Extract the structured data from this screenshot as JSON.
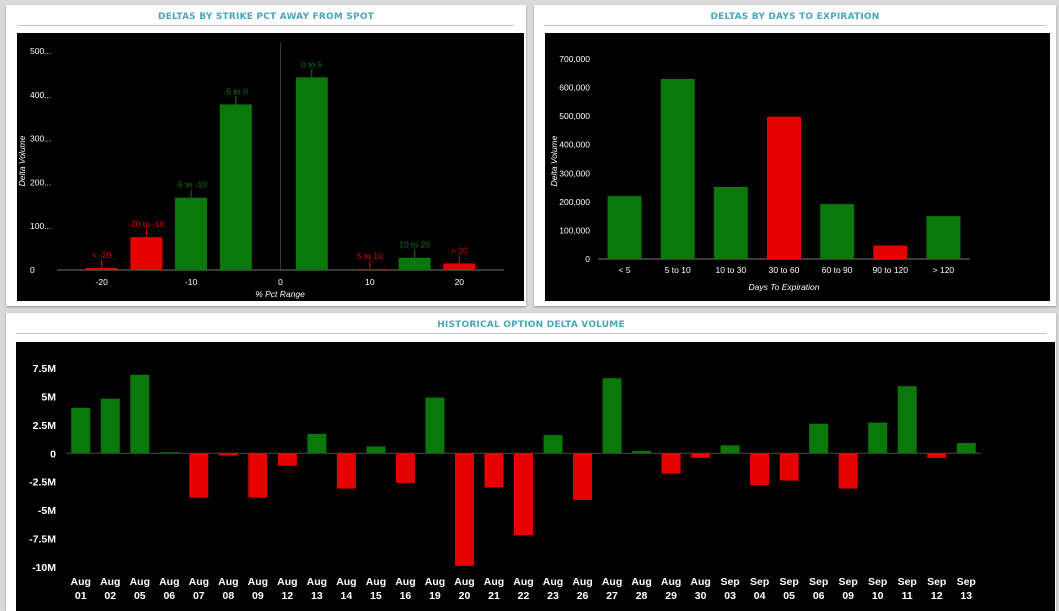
{
  "theme": {
    "title_color": "#4aa5b8",
    "positive_color": "#0a780a",
    "negative_color": "#e60000",
    "plot_bg": "#000000",
    "panel_bg": "#ffffff",
    "page_bg": "#d9d9d9"
  },
  "panels": {
    "strike": {
      "title": "DELTAS BY STRIKE PCT AWAY FROM SPOT"
    },
    "expiration": {
      "title": "DELTAS BY DAYS TO EXPIRATION"
    },
    "historical": {
      "title": "HISTORICAL OPTION DELTA VOLUME"
    }
  },
  "chart_data": [
    {
      "id": "strike",
      "type": "bar",
      "title": "DELTAS BY STRIKE PCT AWAY FROM SPOT",
      "xlabel": "% Pct Range",
      "ylabel": "Delta Volume",
      "xlim": [
        -25,
        25
      ],
      "ylim": [
        0,
        500
      ],
      "x_ticks": [
        -20,
        -10,
        0,
        10,
        20
      ],
      "y_ticks": [
        0,
        100,
        200,
        300,
        400,
        500
      ],
      "y_tick_labels": [
        "0",
        "100...",
        "200...",
        "300...",
        "400...",
        "500..."
      ],
      "bars": [
        {
          "label": "< -20",
          "x": -20,
          "value": 5,
          "sign": "negative"
        },
        {
          "label": "-20 to -10",
          "x": -15,
          "value": 75,
          "sign": "negative"
        },
        {
          "label": "-5 to -10",
          "x": -10,
          "value": 165,
          "sign": "positive"
        },
        {
          "label": "-5 to 0",
          "x": -5,
          "value": 378,
          "sign": "positive"
        },
        {
          "label": "0 to 5",
          "x": 3.5,
          "value": 440,
          "sign": "positive"
        },
        {
          "label": "5 to 10",
          "x": 10,
          "value": 2,
          "sign": "negative"
        },
        {
          "label": "10 to 20",
          "x": 15,
          "value": 28,
          "sign": "positive"
        },
        {
          "label": "> 20",
          "x": 20,
          "value": 15,
          "sign": "negative"
        }
      ],
      "grid": false
    },
    {
      "id": "expiration",
      "type": "bar",
      "title": "DELTAS BY DAYS TO EXPIRATION",
      "xlabel": "Days To Expiration",
      "ylabel": "Delta Volume",
      "ylim": [
        0,
        700000
      ],
      "y_ticks": [
        0,
        100000,
        200000,
        300000,
        400000,
        500000,
        600000,
        700000
      ],
      "y_tick_labels": [
        "0",
        "100,000",
        "200,000",
        "300,000",
        "400,000",
        "500,000",
        "600,000",
        "700,000"
      ],
      "categories": [
        "< 5",
        "5 to 10",
        "10 to 30",
        "30 to 60",
        "60 to 90",
        "90 to 120",
        "> 120"
      ],
      "values": [
        220000,
        630000,
        252000,
        498000,
        192000,
        47000,
        150000
      ],
      "signs": [
        "positive",
        "positive",
        "positive",
        "negative",
        "positive",
        "negative",
        "positive"
      ],
      "grid": false
    },
    {
      "id": "historical",
      "type": "bar",
      "title": "HISTORICAL OPTION DELTA VOLUME",
      "xlabel": "",
      "ylabel": "",
      "ylim": [
        -10,
        7.5
      ],
      "y_ticks": [
        -10,
        -7.5,
        -5,
        -2.5,
        0,
        2.5,
        5,
        7.5
      ],
      "y_tick_labels": [
        "-10M",
        "-7.5M",
        "-5M",
        "-2.5M",
        "0",
        "2.5M",
        "5M",
        "7.5M"
      ],
      "categories": [
        [
          "Aug",
          "01"
        ],
        [
          "Aug",
          "02"
        ],
        [
          "Aug",
          "05"
        ],
        [
          "Aug",
          "06"
        ],
        [
          "Aug",
          "07"
        ],
        [
          "Aug",
          "08"
        ],
        [
          "Aug",
          "09"
        ],
        [
          "Aug",
          "12"
        ],
        [
          "Aug",
          "13"
        ],
        [
          "Aug",
          "14"
        ],
        [
          "Aug",
          "15"
        ],
        [
          "Aug",
          "16"
        ],
        [
          "Aug",
          "19"
        ],
        [
          "Aug",
          "20"
        ],
        [
          "Aug",
          "21"
        ],
        [
          "Aug",
          "22"
        ],
        [
          "Aug",
          "23"
        ],
        [
          "Aug",
          "26"
        ],
        [
          "Aug",
          "27"
        ],
        [
          "Aug",
          "28"
        ],
        [
          "Aug",
          "29"
        ],
        [
          "Aug",
          "30"
        ],
        [
          "Sep",
          "03"
        ],
        [
          "Sep",
          "04"
        ],
        [
          "Sep",
          "05"
        ],
        [
          "Sep",
          "06"
        ],
        [
          "Sep",
          "09"
        ],
        [
          "Sep",
          "10"
        ],
        [
          "Sep",
          "11"
        ],
        [
          "Sep",
          "12"
        ],
        [
          "Sep",
          "13"
        ]
      ],
      "values": [
        4.0,
        4.8,
        6.9,
        0.1,
        -3.9,
        -0.2,
        -3.9,
        -1.1,
        1.7,
        -3.1,
        0.6,
        -2.6,
        4.9,
        -9.9,
        -3.0,
        -7.2,
        1.6,
        -4.1,
        6.6,
        0.2,
        -1.8,
        -0.4,
        0.7,
        -2.8,
        -2.4,
        2.6,
        -3.1,
        2.7,
        5.9,
        -0.4,
        0.9
      ],
      "unit": "M",
      "grid": false
    }
  ]
}
